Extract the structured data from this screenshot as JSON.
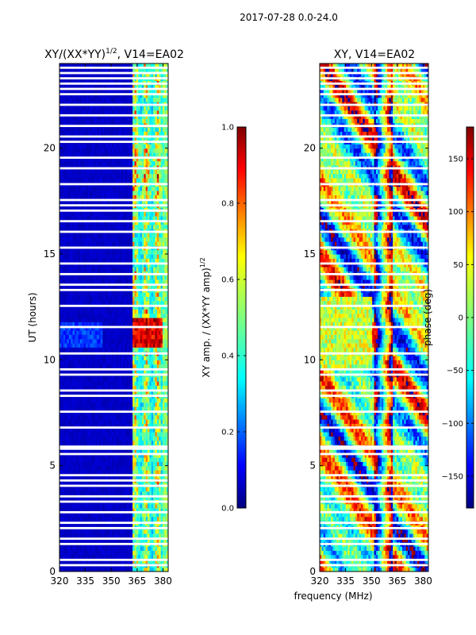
{
  "suptitle": "2017-07-28 0.0-24.0",
  "shared_xlabel": "frequency (MHz)",
  "colors": {
    "background": "#ffffff",
    "frame": "#000000",
    "gap": "#ffffff"
  },
  "chart_data": [
    {
      "type": "heatmap",
      "title_main": "XY/(XX*YY)",
      "title_exp": "1/2",
      "title_tail": ", V14=EA02",
      "xlabel": "",
      "ylabel": "UT (hours)",
      "xlim": [
        320,
        383
      ],
      "ylim": [
        0,
        24
      ],
      "xticks": [
        320,
        335,
        350,
        365,
        380
      ],
      "yticks": [
        0,
        5,
        10,
        15,
        20
      ],
      "colormap": "jet",
      "colorbar": {
        "label_main": "XY amp. / (XX*YY amp)",
        "label_exp": "1/2",
        "range": [
          0.0,
          1.0
        ],
        "ticks": [
          "0.0",
          "0.2",
          "0.4",
          "0.6",
          "0.8",
          "1.0"
        ],
        "tick_values": [
          0.0,
          0.2,
          0.4,
          0.6,
          0.8,
          1.0
        ]
      },
      "data_description": "normalized cross-polarization amplitude; mostly low (~0.05) below 362 MHz, moderate-to-high in 362-380 MHz band with peak ~1.0 near 10.5-12 h",
      "gap_hours": [
        0.3,
        0.55,
        1.3,
        1.55,
        2.05,
        2.3,
        2.8,
        3.3,
        3.55,
        4.05,
        4.3,
        4.55,
        5.55,
        5.8,
        5.9,
        6.8,
        7.55,
        8.3,
        8.55,
        9.3,
        9.55,
        10.3,
        11.55,
        12.55,
        13.3,
        13.55,
        14.05,
        14.55,
        15.3,
        16.05,
        16.55,
        17.05,
        17.3,
        17.55,
        18.3,
        19.05,
        19.55,
        20.3,
        20.55,
        21.05,
        21.55,
        22.05,
        22.55,
        22.8,
        23.05,
        23.3,
        23.55,
        23.8
      ]
    },
    {
      "type": "heatmap",
      "title_main": "XY, V14=EA02",
      "xlabel": "frequency (MHz)",
      "ylabel": "",
      "xlim": [
        320,
        383
      ],
      "ylim": [
        0,
        24
      ],
      "xticks": [
        320,
        335,
        350,
        365,
        380
      ],
      "yticks": [
        0,
        5,
        10,
        15,
        20
      ],
      "colormap": "jet",
      "colorbar": {
        "label": "phase (deg)",
        "range": [
          -180,
          180
        ],
        "ticks": [
          "−150",
          "−100",
          "−50",
          "0",
          "50",
          "100",
          "150"
        ],
        "tick_values": [
          -150,
          -100,
          -50,
          0,
          50,
          100,
          150
        ]
      },
      "data_description": "cross-polarization phase wrapping across full -180 to 180 degree range, with vertical fringe structure near 352-362 MHz",
      "gap_hours": [
        0.3,
        0.55,
        1.3,
        1.55,
        2.05,
        2.3,
        2.8,
        3.3,
        3.55,
        4.05,
        4.3,
        4.55,
        5.55,
        5.8,
        5.9,
        6.8,
        7.55,
        8.3,
        8.55,
        9.3,
        9.55,
        10.3,
        11.55,
        12.55,
        13.3,
        13.55,
        14.05,
        14.55,
        15.3,
        16.05,
        16.55,
        17.05,
        17.3,
        17.55,
        18.3,
        19.05,
        19.55,
        20.3,
        20.55,
        21.05,
        21.55,
        22.05,
        22.55,
        22.8,
        23.05,
        23.3,
        23.55,
        23.8
      ]
    }
  ]
}
